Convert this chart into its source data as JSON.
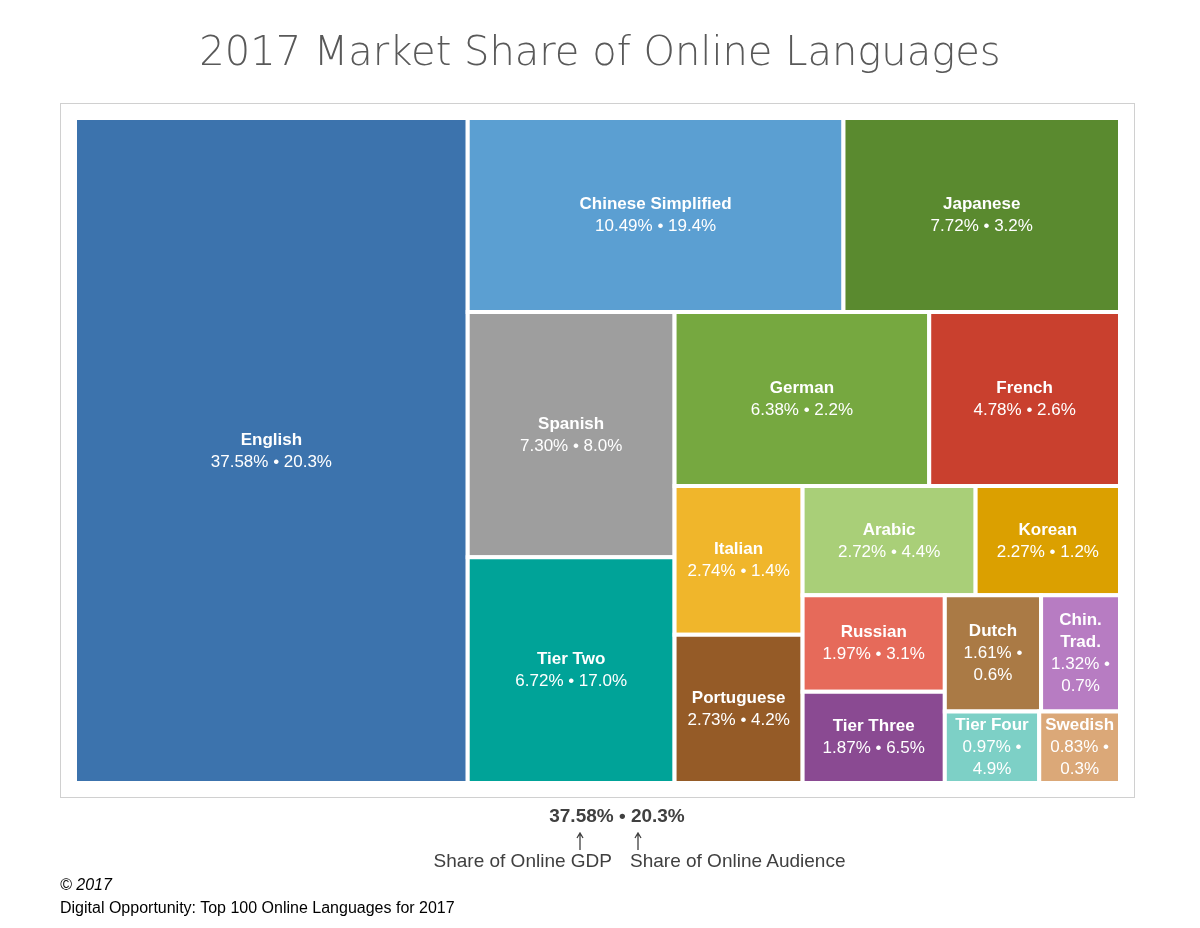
{
  "chart_data": {
    "type": "other",
    "title": "2017 Market Share of Online Languages",
    "categories": [
      "English",
      "Chinese Simplified",
      "Japanese",
      "Spanish",
      "Tier Two",
      "German",
      "French",
      "Italian",
      "Portuguese",
      "Arabic",
      "Korean",
      "Russian",
      "Tier Three",
      "Dutch",
      "Chin. Trad.",
      "Tier Four",
      "Swedish"
    ],
    "series": [
      {
        "name": "Share of Online GDP",
        "colors": [
          "#3c73ad",
          "#5b9fd2",
          "#5a8a2f",
          "#9e9e9e",
          "#00a398",
          "#76a840",
          "#c9402e",
          "#f0b62b",
          "#955b27",
          "#a9cf78",
          "#dba000",
          "#e66a5a",
          "#8a4a92",
          "#aa7a45",
          "#b77cc2",
          "#7dd0c6",
          "#dba878"
        ],
        "values": [
          37.58,
          10.49,
          7.72,
          7.3,
          6.72,
          6.38,
          4.78,
          2.74,
          2.73,
          2.72,
          2.27,
          1.97,
          1.87,
          1.61,
          1.32,
          0.97,
          0.83
        ],
        "value_labels": [
          "37.58% •",
          "10.49% •",
          "7.72% •",
          "7.30% •",
          "6.72% •",
          "6.38% •",
          "4.78% •",
          "2.74% •",
          "2.73% •",
          "2.72% •",
          "2.27% •",
          "1.97% •",
          "1.87% •",
          "1.61% •",
          "1.32% •",
          "0.97% •",
          "0.83% •"
        ]
      },
      {
        "name": "Share of Online Audience",
        "values": [
          20.3,
          19.4,
          3.2,
          8.0,
          17.0,
          2.2,
          2.6,
          1.4,
          4.2,
          4.4,
          1.2,
          3.1,
          6.5,
          0.6,
          0.7,
          4.9,
          0.3
        ],
        "value_labels": [
          "20.3%",
          "19.4%",
          "3.2%",
          "8.0%",
          "17.0%",
          "2.2%",
          "2.6%",
          "1.4%",
          "4.2%",
          "4.4%",
          "1.2%",
          "3.1%",
          "6.5%",
          "0.6%",
          "0.7%",
          "4.9%",
          "0.3%"
        ]
      }
    ],
    "annotations": [
      "37.58% • 20.3%",
      "© 2017",
      "Digital Opportunity: Top 100 Online Languages for 2017"
    ]
  }
}
